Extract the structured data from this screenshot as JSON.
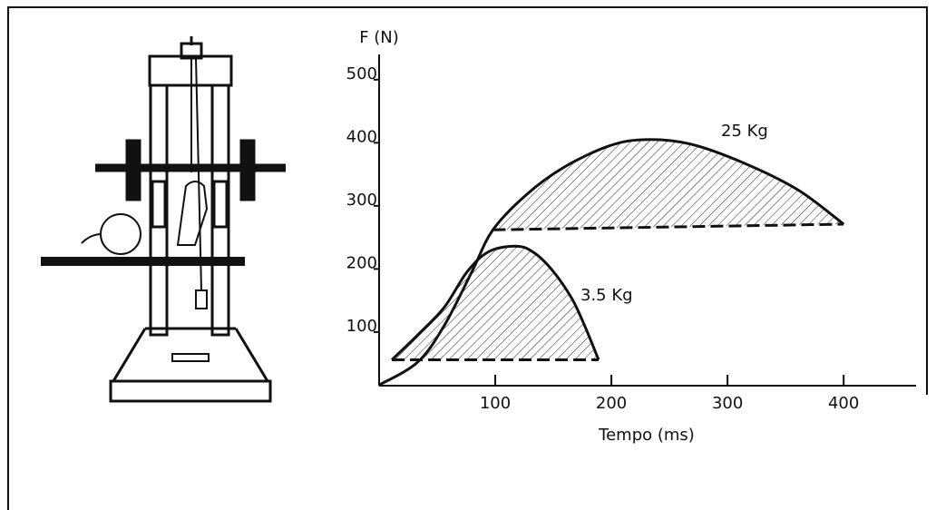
{
  "chart_data": {
    "type": "area",
    "ylabel": "F (N)",
    "xlabel": "Tempo (ms)",
    "xlim": [
      0,
      460
    ],
    "ylim": [
      15,
      540
    ],
    "xticks": [
      100,
      200,
      300,
      400
    ],
    "yticks": [
      100,
      200,
      300,
      400,
      500
    ],
    "series": [
      {
        "name": "25 Kg",
        "color": "#111111",
        "x": [
          0,
          33,
          56,
          80,
          98,
          127,
          159,
          198,
          229,
          268,
          314,
          361,
          400
        ],
        "values": [
          16,
          52,
          110,
          196,
          262,
          318,
          361,
          395,
          405,
          398,
          368,
          325,
          271
        ],
        "baseline_x": [
          98,
          400
        ],
        "baseline_values": [
          262,
          271
        ]
      },
      {
        "name": "3.5 Kg",
        "color": "#111111",
        "x": [
          11,
          33,
          56,
          76,
          95,
          119,
          134,
          150,
          166,
          177,
          189
        ],
        "values": [
          56,
          95,
          139,
          196,
          228,
          236,
          225,
          196,
          153,
          110,
          56
        ],
        "baseline_x": [
          11,
          189
        ],
        "baseline_values": [
          56,
          56
        ]
      }
    ]
  }
}
